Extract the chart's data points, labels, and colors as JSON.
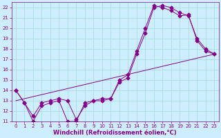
{
  "xlabel": "Windchill (Refroidissement éolien,°C)",
  "ylabel": "",
  "background_color": "#cceeff",
  "line_color": "#880088",
  "grid_color": "#aadddd",
  "xlim": [
    -0.5,
    23.5
  ],
  "ylim": [
    11,
    22.5
  ],
  "xticks": [
    0,
    1,
    2,
    3,
    4,
    5,
    6,
    7,
    8,
    9,
    10,
    11,
    12,
    13,
    14,
    15,
    16,
    17,
    18,
    19,
    20,
    21,
    22,
    23
  ],
  "yticks": [
    11,
    12,
    13,
    14,
    15,
    16,
    17,
    18,
    19,
    20,
    21,
    22
  ],
  "series1_x": [
    0,
    1,
    2,
    3,
    4,
    5,
    6,
    7,
    8,
    9,
    10,
    11,
    12,
    13,
    14,
    15,
    16,
    17,
    18,
    19,
    20,
    21,
    22,
    23
  ],
  "series1_y": [
    14,
    12.8,
    11,
    12.5,
    12.8,
    13,
    11,
    11,
    12.8,
    13,
    13,
    13.2,
    14.8,
    15.2,
    17.5,
    19.5,
    22,
    22.2,
    22,
    21.5,
    21.2,
    19,
    18,
    17.5
  ],
  "series2_x": [
    0,
    1,
    2,
    3,
    4,
    5,
    6,
    7,
    8,
    9,
    10,
    11,
    12,
    13,
    14,
    15,
    16,
    17,
    18,
    19,
    20,
    21,
    22,
    23
  ],
  "series2_y": [
    14,
    12.8,
    11.5,
    12.8,
    13,
    13.2,
    13,
    11.2,
    12.5,
    13,
    13.2,
    13.2,
    15,
    15.5,
    17.8,
    20.0,
    22.2,
    22.0,
    21.7,
    21.2,
    21.3,
    18.8,
    17.8,
    17.5
  ],
  "series3_x": [
    0,
    23
  ],
  "series3_y": [
    13.0,
    17.5
  ],
  "marker_size": 2.5,
  "font_size": 6.0,
  "tick_label_fontsize": 5.0,
  "xlabel_fontsize": 6.0
}
